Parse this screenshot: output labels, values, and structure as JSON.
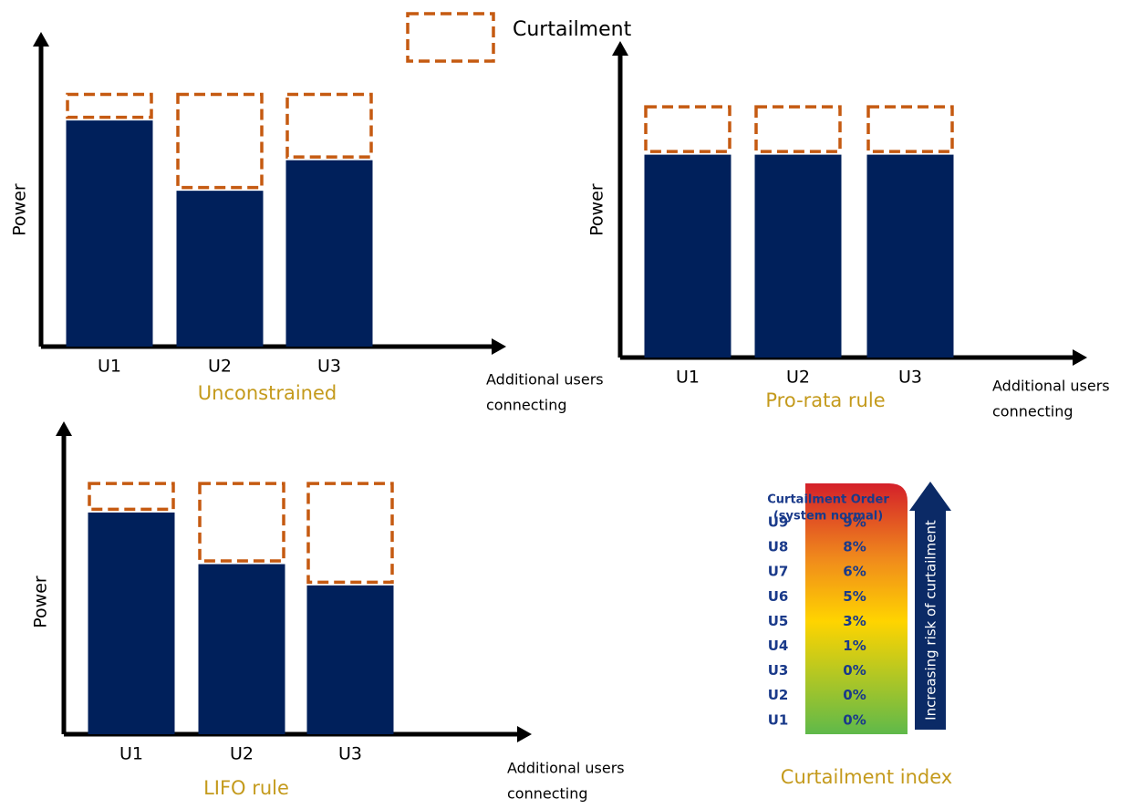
{
  "legend_label": "Curtailment",
  "chart_data": [
    {
      "type": "bar",
      "stacked": true,
      "caption": "Unconstrained",
      "y_label": "Power",
      "x_label": [
        "Additional users",
        "connecting"
      ],
      "categories": [
        "U1",
        "U2",
        "U3"
      ],
      "ylim": [
        0,
        100
      ],
      "series": [
        {
          "color": "#00205b",
          "values": [
            74,
            51,
            61
          ]
        },
        {
          "color": "#c55a11",
          "style": "dashed",
          "values": [
            9,
            32,
            22
          ]
        }
      ]
    },
    {
      "type": "bar",
      "stacked": true,
      "caption": "Pro-rata rule",
      "y_label": "Power",
      "x_label": [
        "Additional users",
        "connecting"
      ],
      "categories": [
        "U1",
        "U2",
        "U3"
      ],
      "ylim": [
        0,
        100
      ],
      "series": [
        {
          "color": "#00205b",
          "values": [
            66,
            66,
            66
          ]
        },
        {
          "color": "#c55a11",
          "style": "dashed",
          "values": [
            16,
            16,
            16
          ]
        }
      ]
    },
    {
      "type": "bar",
      "stacked": true,
      "caption": "LIFO rule",
      "y_label": "Power",
      "x_label": [
        "Additional users",
        "connecting"
      ],
      "categories": [
        "U1",
        "U2",
        "U3"
      ],
      "ylim": [
        0,
        100
      ],
      "series": [
        {
          "color": "#00205b",
          "values": [
            73,
            56,
            49
          ]
        },
        {
          "color": "#c55a11",
          "style": "dashed",
          "values": [
            10,
            27,
            34
          ]
        }
      ]
    }
  ],
  "curtailment_index": {
    "title": [
      "Curtailment Order",
      "(system normal)"
    ],
    "rows": [
      [
        "U9",
        "9%"
      ],
      [
        "U8",
        "8%"
      ],
      [
        "U7",
        "6%"
      ],
      [
        "U6",
        "5%"
      ],
      [
        "U5",
        "3%"
      ],
      [
        "U4",
        "1%"
      ],
      [
        "U3",
        "0%"
      ],
      [
        "U2",
        "0%"
      ],
      [
        "U1",
        "0%"
      ]
    ],
    "arrow_label": "Increasing risk of curtailment",
    "caption": "Curtailment index"
  }
}
